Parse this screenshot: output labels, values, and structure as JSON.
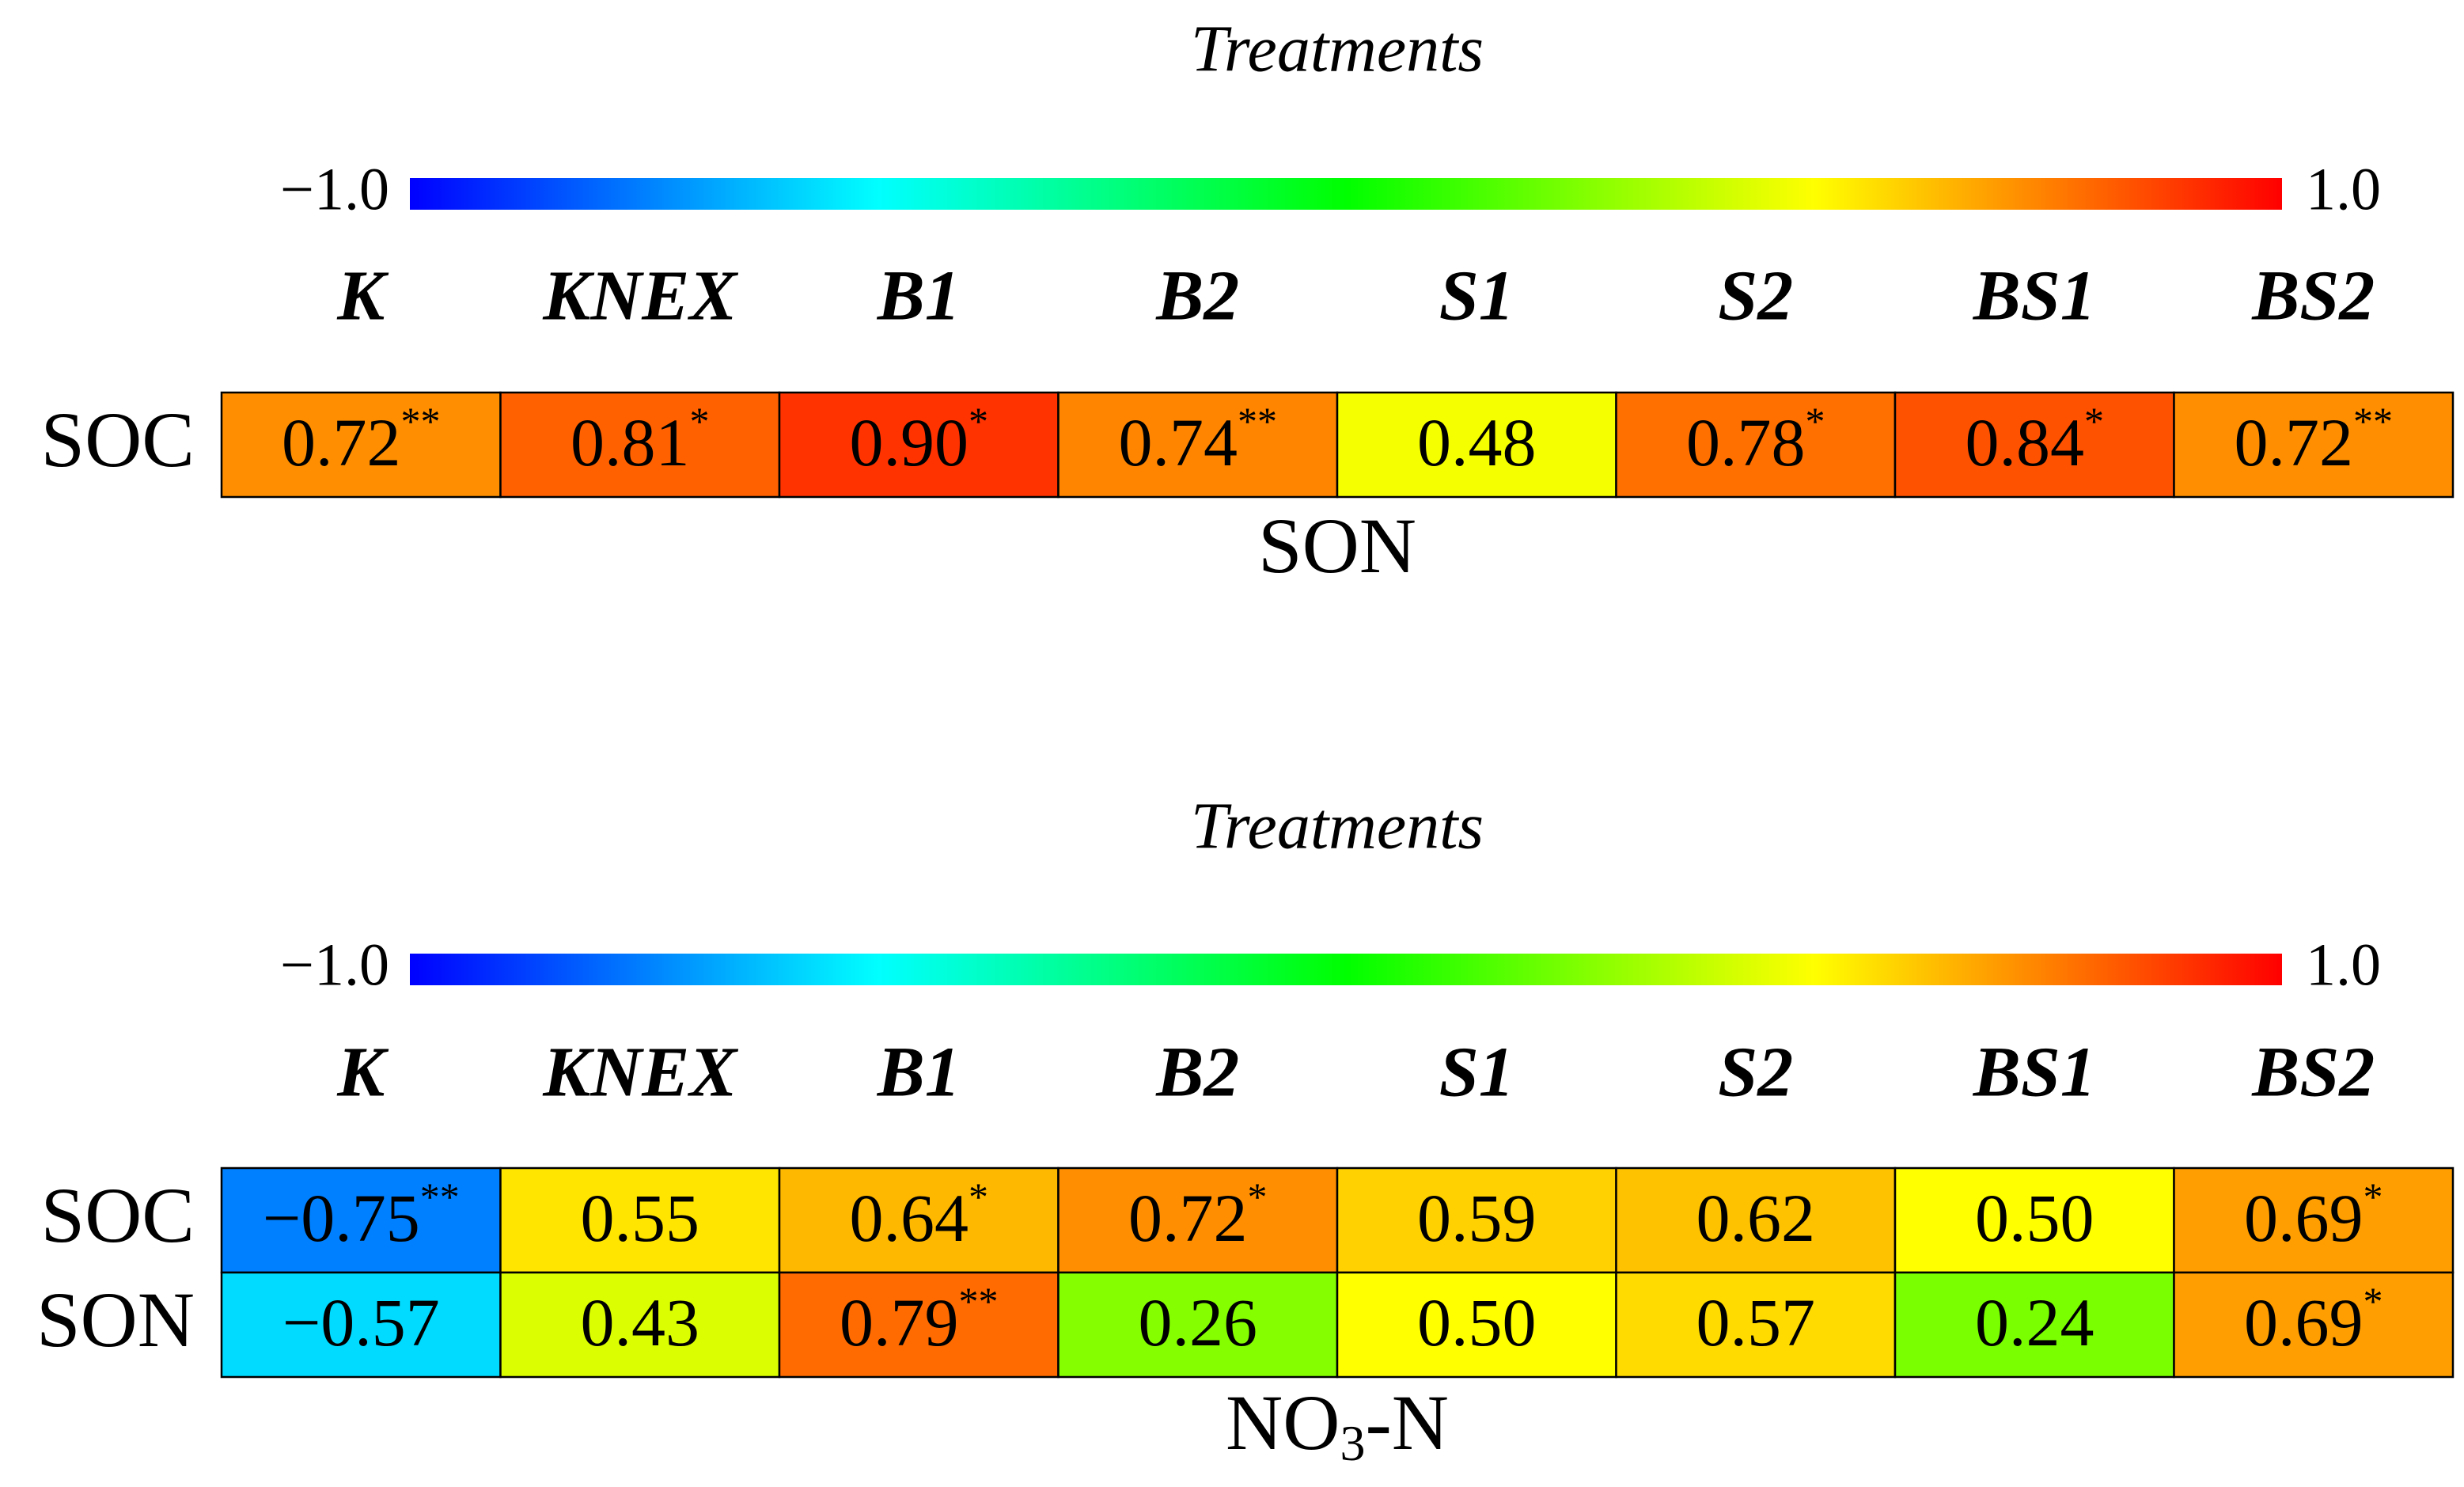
{
  "chart_data": [
    {
      "type": "heatmap",
      "title": "Treatments",
      "colorbar": {
        "min_label": "−1.0",
        "max_label": "1.0",
        "min": -1.0,
        "max": 1.0
      },
      "columns": [
        "K",
        "KNEX",
        "B1",
        "B2",
        "S1",
        "S2",
        "BS1",
        "BS2"
      ],
      "rows": [
        "SOC"
      ],
      "xlabel": "SON",
      "cells": [
        [
          {
            "value": 0.72,
            "text": "0.72",
            "sig": "**"
          },
          {
            "value": 0.81,
            "text": "0.81",
            "sig": "*"
          },
          {
            "value": 0.9,
            "text": "0.90",
            "sig": "*"
          },
          {
            "value": 0.74,
            "text": "0.74",
            "sig": "**"
          },
          {
            "value": 0.48,
            "text": "0.48",
            "sig": ""
          },
          {
            "value": 0.78,
            "text": "0.78",
            "sig": "*"
          },
          {
            "value": 0.84,
            "text": "0.84",
            "sig": "*"
          },
          {
            "value": 0.72,
            "text": "0.72",
            "sig": "**"
          }
        ]
      ]
    },
    {
      "type": "heatmap",
      "title": "Treatments",
      "colorbar": {
        "min_label": "−1.0",
        "max_label": "1.0",
        "min": -1.0,
        "max": 1.0
      },
      "columns": [
        "K",
        "KNEX",
        "B1",
        "B2",
        "S1",
        "S2",
        "BS1",
        "BS2"
      ],
      "rows": [
        "SOC",
        "SON"
      ],
      "xlabel": "NO3-N",
      "xlabel_base": "NO",
      "xlabel_sub": "3",
      "xlabel_tail": "-N",
      "cells": [
        [
          {
            "value": -0.75,
            "text": "−0.75",
            "sig": "**"
          },
          {
            "value": 0.55,
            "text": "0.55",
            "sig": ""
          },
          {
            "value": 0.64,
            "text": "0.64",
            "sig": "*"
          },
          {
            "value": 0.72,
            "text": "0.72",
            "sig": "*"
          },
          {
            "value": 0.59,
            "text": "0.59",
            "sig": ""
          },
          {
            "value": 0.62,
            "text": "0.62",
            "sig": ""
          },
          {
            "value": 0.5,
            "text": "0.50",
            "sig": ""
          },
          {
            "value": 0.69,
            "text": "0.69",
            "sig": "*"
          }
        ],
        [
          {
            "value": -0.57,
            "text": "−0.57",
            "sig": ""
          },
          {
            "value": 0.43,
            "text": "0.43",
            "sig": ""
          },
          {
            "value": 0.79,
            "text": "0.79",
            "sig": "**"
          },
          {
            "value": 0.26,
            "text": "0.26",
            "sig": ""
          },
          {
            "value": 0.5,
            "text": "0.50",
            "sig": ""
          },
          {
            "value": 0.57,
            "text": "0.57",
            "sig": ""
          },
          {
            "value": 0.24,
            "text": "0.24",
            "sig": ""
          },
          {
            "value": 0.69,
            "text": "0.69",
            "sig": "*"
          }
        ]
      ]
    }
  ],
  "colors": {
    "scale": [
      "#0000ff",
      "#00ffff",
      "#00ff00",
      "#ffff00",
      "#ff0000"
    ],
    "cell_border": "#000000",
    "text": "#000000"
  }
}
